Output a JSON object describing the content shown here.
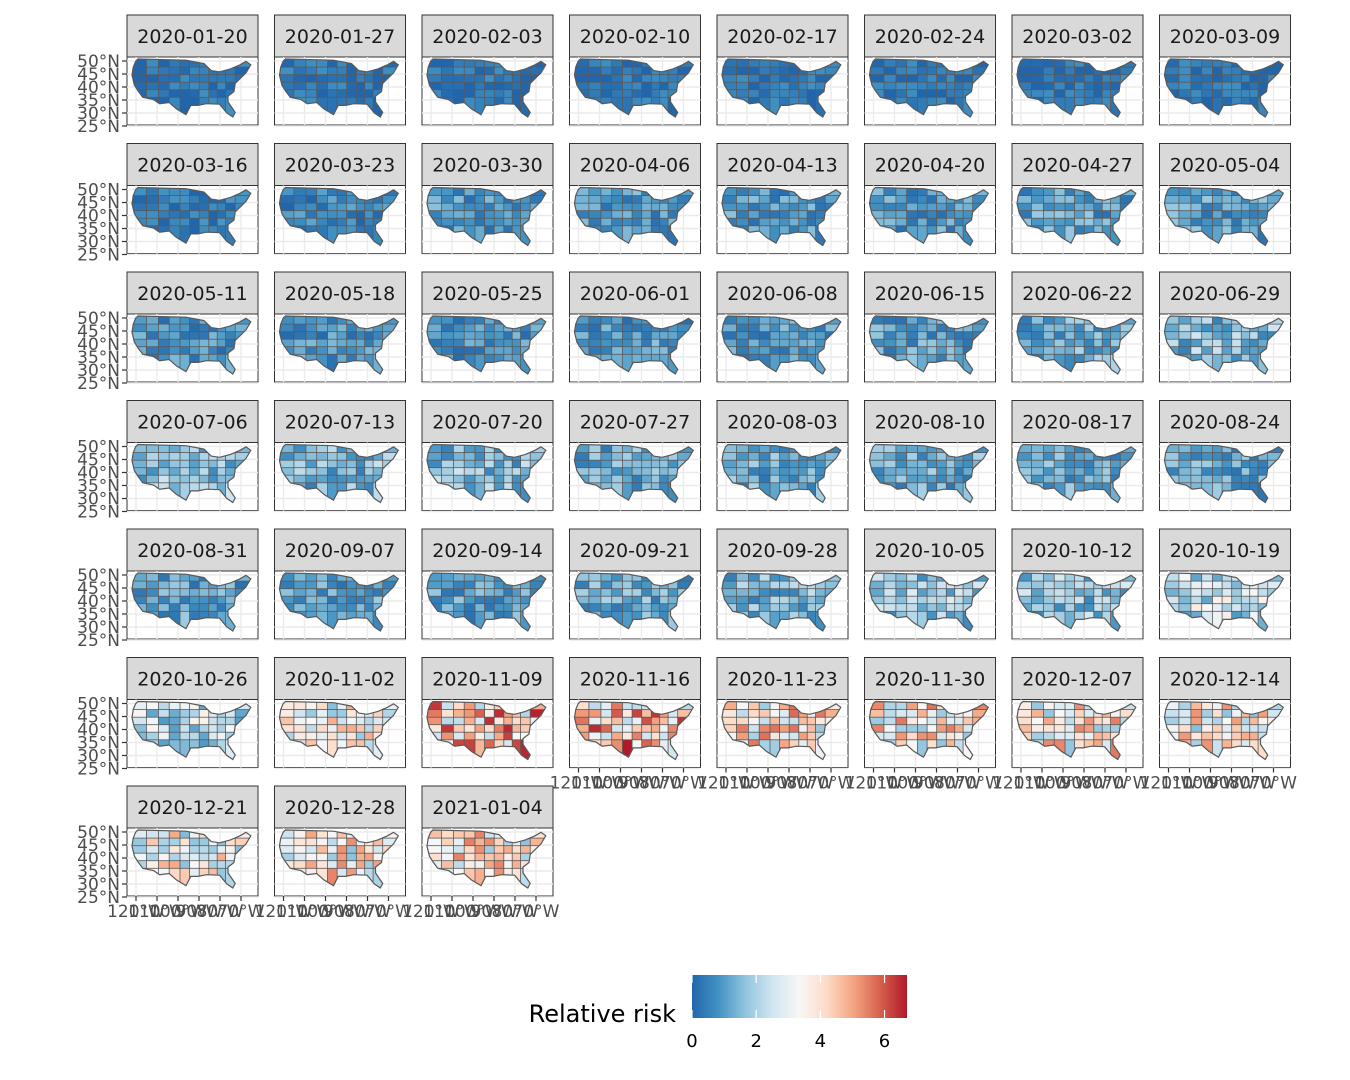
{
  "chart_data": {
    "type": "heatmap",
    "subtype": "faceted choropleth map",
    "facets": [
      "2020-01-20",
      "2020-01-27",
      "2020-02-03",
      "2020-02-10",
      "2020-02-17",
      "2020-02-24",
      "2020-03-02",
      "2020-03-09",
      "2020-03-16",
      "2020-03-23",
      "2020-03-30",
      "2020-04-06",
      "2020-04-13",
      "2020-04-20",
      "2020-04-27",
      "2020-05-04",
      "2020-05-11",
      "2020-05-18",
      "2020-05-25",
      "2020-06-01",
      "2020-06-08",
      "2020-06-15",
      "2020-06-22",
      "2020-06-29",
      "2020-07-06",
      "2020-07-13",
      "2020-07-20",
      "2020-07-27",
      "2020-08-03",
      "2020-08-10",
      "2020-08-17",
      "2020-08-24",
      "2020-08-31",
      "2020-09-07",
      "2020-09-14",
      "2020-09-21",
      "2020-09-28",
      "2020-10-05",
      "2020-10-12",
      "2020-10-19",
      "2020-10-26",
      "2020-11-02",
      "2020-11-09",
      "2020-11-16",
      "2020-11-23",
      "2020-11-30",
      "2020-12-07",
      "2020-12-14",
      "2020-12-21",
      "2020-12-28",
      "2021-01-04"
    ],
    "facet_columns": 8,
    "facet_mean_risk": [
      0.3,
      0.3,
      0.3,
      0.3,
      0.3,
      0.3,
      0.3,
      0.3,
      0.4,
      0.6,
      0.9,
      0.9,
      0.9,
      0.9,
      1.0,
      1.0,
      0.8,
      0.8,
      0.8,
      0.9,
      0.9,
      1.0,
      1.2,
      1.5,
      1.5,
      1.4,
      1.5,
      1.2,
      1.2,
      1.2,
      1.1,
      1.1,
      1.0,
      1.0,
      1.0,
      1.2,
      1.4,
      1.7,
      1.7,
      2.3,
      2.3,
      3.2,
      4.3,
      4.5,
      3.7,
      3.7,
      3.6,
      3.4,
      3.2,
      3.5,
      3.6
    ],
    "y_ticks": [
      "50°N",
      "45°N",
      "40°N",
      "35°N",
      "30°N",
      "25°N"
    ],
    "x_ticks": [
      "120°W",
      "110°W",
      "100°W",
      "90°W",
      "80°W",
      "70°W"
    ],
    "legend": {
      "title": "Relative risk",
      "ticks": [
        0,
        2,
        4,
        6
      ],
      "range": [
        0,
        6.7
      ],
      "colors": [
        "#2166ac",
        "#4393c3",
        "#92c5de",
        "#d1e5f0",
        "#f7f7f7",
        "#fddbc7",
        "#f4a582",
        "#d6604d",
        "#b2182b"
      ],
      "position": "bottom"
    },
    "border_color": "#595959",
    "strip_fill": "#d9d9d9",
    "panel_border": "#333333"
  }
}
